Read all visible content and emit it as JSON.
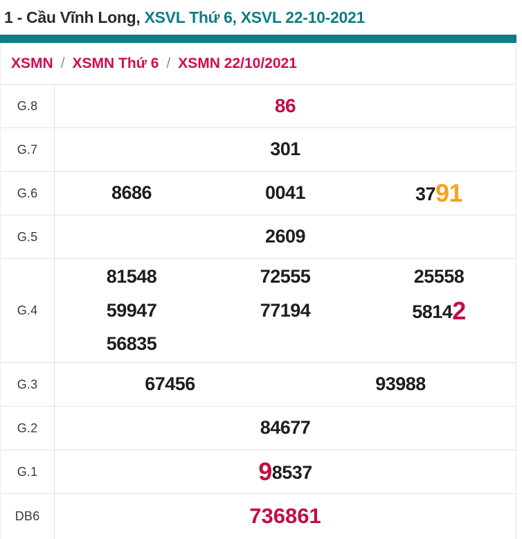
{
  "colors": {
    "teal_accent": "#0c7e84",
    "breadcrumb_red": "#d40a53",
    "number_red": "#c50d42",
    "highlight_orange": "#f6a21c",
    "number_black": "#1e1e1e",
    "label_gray": "#3a3a3a",
    "row_border": "#e2e2e2",
    "separator_gray": "#8392a4"
  },
  "header": {
    "title_prefix": "1 - Cầu Vĩnh Long,",
    "title_link_day": "XSVL Thứ 6,",
    "title_link_date": "XSVL 22-10-2021"
  },
  "breadcrumb": {
    "separator": "/",
    "items": [
      {
        "label": "XSMN"
      },
      {
        "label": "XSMN Thứ 6"
      },
      {
        "label": "XSMN 22/10/2021"
      }
    ]
  },
  "table": {
    "rows": [
      {
        "label": "G.8",
        "values": [
          {
            "segments": [
              {
                "text": "86",
                "style": "red"
              }
            ]
          }
        ]
      },
      {
        "label": "G.7",
        "values": [
          {
            "segments": [
              {
                "text": "301"
              }
            ]
          }
        ]
      },
      {
        "label": "G.6",
        "values": [
          {
            "segments": [
              {
                "text": "8686"
              }
            ]
          },
          {
            "segments": [
              {
                "text": "0041"
              }
            ]
          },
          {
            "segments": [
              {
                "text": "37"
              },
              {
                "text": "91",
                "style": "orange-big"
              }
            ]
          }
        ]
      },
      {
        "label": "G.5",
        "values": [
          {
            "segments": [
              {
                "text": "2609"
              }
            ]
          }
        ]
      },
      {
        "label": "G.4",
        "values": [
          {
            "segments": [
              {
                "text": "81548"
              }
            ]
          },
          {
            "segments": [
              {
                "text": "72555"
              }
            ]
          },
          {
            "segments": [
              {
                "text": "25558"
              }
            ]
          },
          {
            "segments": [
              {
                "text": "59947"
              }
            ]
          },
          {
            "segments": [
              {
                "text": "77194"
              }
            ]
          },
          {
            "segments": [
              {
                "text": "5814"
              },
              {
                "text": "2",
                "style": "red-big"
              }
            ]
          },
          {
            "segments": [
              {
                "text": "56835"
              }
            ]
          }
        ]
      },
      {
        "label": "G.3",
        "values": [
          {
            "segments": [
              {
                "text": "67456"
              }
            ]
          },
          {
            "segments": [
              {
                "text": "93988"
              }
            ]
          }
        ]
      },
      {
        "label": "G.2",
        "values": [
          {
            "segments": [
              {
                "text": "84677"
              }
            ]
          }
        ]
      },
      {
        "label": "G.1",
        "values": [
          {
            "segments": [
              {
                "text": "9",
                "style": "red-big"
              },
              {
                "text": "8537"
              }
            ]
          }
        ]
      },
      {
        "label": "DB6",
        "values": [
          {
            "segments": [
              {
                "text": "736861",
                "style": "red-db"
              }
            ]
          }
        ]
      }
    ]
  }
}
